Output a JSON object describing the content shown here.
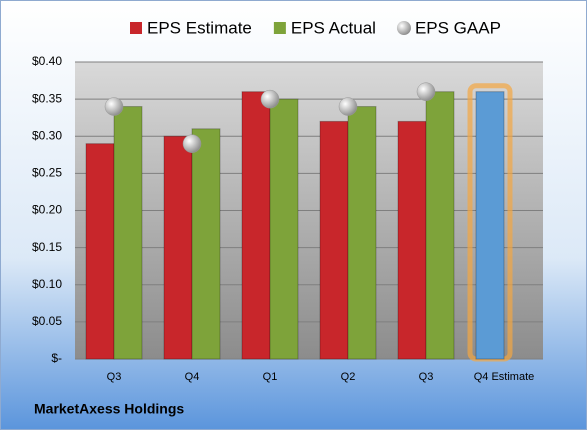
{
  "chart_data": {
    "type": "bar",
    "title": "MarketAxess Holdings",
    "categories": [
      "Q3",
      "Q4",
      "Q1",
      "Q2",
      "Q3",
      "Q4 Estimate"
    ],
    "series": [
      {
        "name": "EPS Estimate",
        "color": "#c8262b",
        "colors": [
          "#c8262b",
          "#c8262b",
          "#c8262b",
          "#c8262b",
          "#c8262b",
          "#5b9bd5"
        ],
        "values": [
          0.29,
          0.3,
          0.36,
          0.32,
          0.32,
          0.36
        ]
      },
      {
        "name": "EPS Actual",
        "color": "#7ea33a",
        "values": [
          0.34,
          0.31,
          0.35,
          0.34,
          0.36,
          null
        ]
      },
      {
        "name": "EPS GAAP",
        "color": "#bfbfbf",
        "marker": "sphere",
        "values": [
          0.34,
          0.29,
          0.35,
          0.34,
          0.36,
          null
        ]
      }
    ],
    "ylim": [
      0,
      0.4
    ],
    "yticks": [
      {
        "value": 0,
        "label": "$-"
      },
      {
        "value": 0.05,
        "label": "$0.05"
      },
      {
        "value": 0.1,
        "label": "$0.10"
      },
      {
        "value": 0.15,
        "label": "$0.15"
      },
      {
        "value": 0.2,
        "label": "$0.20"
      },
      {
        "value": 0.25,
        "label": "$0.25"
      },
      {
        "value": 0.3,
        "label": "$0.30"
      },
      {
        "value": 0.35,
        "label": "$0.35"
      },
      {
        "value": 0.4,
        "label": "$0.40"
      }
    ],
    "grid": true,
    "legend": "top"
  }
}
